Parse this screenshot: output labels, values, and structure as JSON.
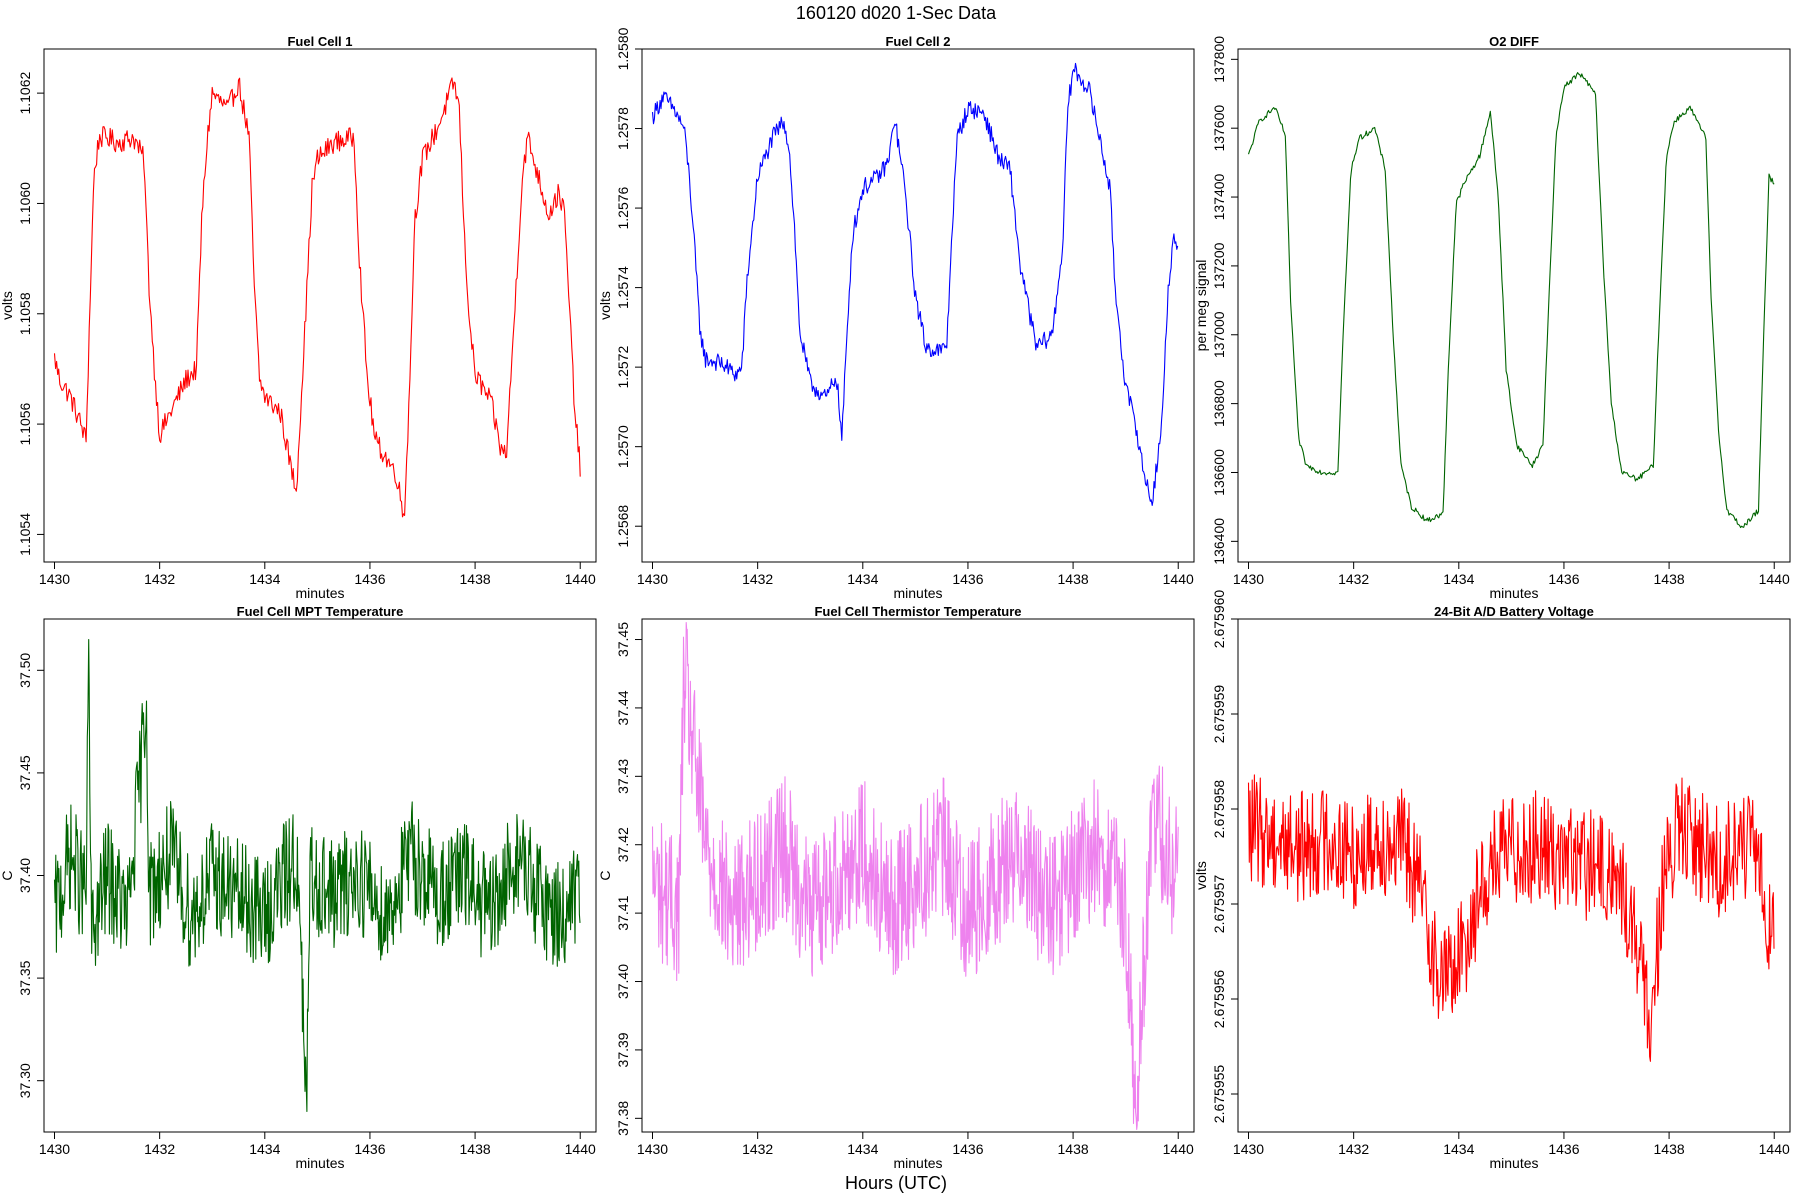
{
  "page": {
    "title": "160120   d020   1-Sec Data",
    "footer": "Hours (UTC)"
  },
  "chart_data": [
    {
      "type": "line",
      "title": "Fuel Cell 1",
      "xlabel": "minutes",
      "ylabel": "volts",
      "color": "#ff0000",
      "xlim": [
        1429.8,
        1440.3
      ],
      "ylim": [
        1.10535,
        1.10628
      ],
      "xticks": [
        1430,
        1432,
        1434,
        1436,
        1438,
        1440
      ],
      "xtick_labels": [
        "1430",
        "1432",
        "1434",
        "1436",
        "1438",
        "1440"
      ],
      "yticks": [
        1.1054,
        1.1056,
        1.1058,
        1.106,
        1.1062
      ],
      "ytick_labels": [
        "1.1054",
        "1.1056",
        "1.1058",
        "1.1060",
        "1.1062"
      ],
      "series": [
        {
          "x": [
            1430.0,
            1430.1,
            1430.3,
            1430.5,
            1430.6,
            1430.7,
            1430.75,
            1430.85,
            1431.0,
            1431.2,
            1431.5,
            1431.7,
            1431.8,
            1431.9,
            1432.0,
            1432.2,
            1432.5,
            1432.7,
            1432.8,
            1432.9,
            1433.0,
            1433.3,
            1433.5,
            1433.7,
            1433.8,
            1433.9,
            1434.0,
            1434.3,
            1434.5,
            1434.6,
            1434.75,
            1434.9,
            1435.0,
            1435.3,
            1435.7,
            1435.8,
            1435.95,
            1436.1,
            1436.3,
            1436.5,
            1436.65,
            1436.75,
            1436.85,
            1437.0,
            1437.3,
            1437.6,
            1437.7,
            1437.8,
            1437.9,
            1438.0,
            1438.3,
            1438.5,
            1438.6,
            1438.75,
            1438.9,
            1439.0,
            1439.2,
            1439.4,
            1439.6,
            1439.7,
            1439.8,
            1439.9,
            1440.0
          ],
          "y": [
            1.10572,
            1.10568,
            1.10565,
            1.1056,
            1.10557,
            1.1059,
            1.10605,
            1.10612,
            1.10612,
            1.10611,
            1.10612,
            1.10608,
            1.10585,
            1.1057,
            1.10558,
            1.10562,
            1.10568,
            1.1057,
            1.10597,
            1.10611,
            1.1062,
            1.10617,
            1.10622,
            1.10612,
            1.10585,
            1.10568,
            1.10565,
            1.10562,
            1.10552,
            1.10548,
            1.10575,
            1.10603,
            1.10608,
            1.10611,
            1.10612,
            1.1059,
            1.10568,
            1.10557,
            1.10554,
            1.10551,
            1.10543,
            1.10565,
            1.10597,
            1.10608,
            1.10614,
            1.10622,
            1.10617,
            1.10593,
            1.10578,
            1.10569,
            1.10564,
            1.10555,
            1.10555,
            1.1058,
            1.10605,
            1.10612,
            1.10605,
            1.10598,
            1.10602,
            1.10598,
            1.1058,
            1.10562,
            1.10552
          ]
        }
      ]
    },
    {
      "type": "line",
      "title": "Fuel Cell 2",
      "xlabel": "minutes",
      "ylabel": "volts",
      "color": "#0000ff",
      "xlim": [
        1429.8,
        1440.3
      ],
      "ylim": [
        1.25671,
        1.258
      ],
      "xticks": [
        1430,
        1432,
        1434,
        1436,
        1438,
        1440
      ],
      "xtick_labels": [
        "1430",
        "1432",
        "1434",
        "1436",
        "1438",
        "1440"
      ],
      "yticks": [
        1.2568,
        1.257,
        1.2572,
        1.2574,
        1.2576,
        1.2578,
        1.258
      ],
      "ytick_labels": [
        "1.2568",
        "1.2570",
        "1.2572",
        "1.2574",
        "1.2576",
        "1.2578",
        "1.2580"
      ],
      "series": [
        {
          "x": [
            1430.0,
            1430.2,
            1430.4,
            1430.6,
            1430.7,
            1430.8,
            1430.9,
            1431.0,
            1431.3,
            1431.6,
            1431.7,
            1431.8,
            1432.0,
            1432.3,
            1432.5,
            1432.6,
            1432.7,
            1432.8,
            1433.0,
            1433.3,
            1433.5,
            1433.6,
            1433.7,
            1433.8,
            1434.0,
            1434.3,
            1434.5,
            1434.6,
            1434.8,
            1435.0,
            1435.2,
            1435.5,
            1435.6,
            1435.7,
            1435.8,
            1436.0,
            1436.3,
            1436.6,
            1436.8,
            1437.0,
            1437.3,
            1437.6,
            1437.8,
            1437.9,
            1438.0,
            1438.3,
            1438.5,
            1438.7,
            1438.8,
            1439.0,
            1439.2,
            1439.35,
            1439.5,
            1439.6,
            1439.7,
            1439.8,
            1439.9,
            1440.0
          ],
          "y": [
            1.25783,
            1.25788,
            1.25785,
            1.2578,
            1.25768,
            1.2575,
            1.2573,
            1.25722,
            1.25721,
            1.25718,
            1.2572,
            1.25742,
            1.25768,
            1.25778,
            1.25782,
            1.25775,
            1.25755,
            1.25729,
            1.25716,
            1.25712,
            1.25718,
            1.25702,
            1.25728,
            1.25753,
            1.25765,
            1.25768,
            1.25772,
            1.25783,
            1.25765,
            1.25738,
            1.25725,
            1.25724,
            1.25726,
            1.25755,
            1.25778,
            1.25785,
            1.25784,
            1.25772,
            1.2577,
            1.25745,
            1.25725,
            1.25728,
            1.2575,
            1.25785,
            1.25795,
            1.2579,
            1.25778,
            1.25765,
            1.2574,
            1.25715,
            1.25705,
            1.25693,
            1.25686,
            1.25696,
            1.25708,
            1.25738,
            1.25752,
            1.25748
          ]
        }
      ]
    },
    {
      "type": "line",
      "title": "O2 DIFF",
      "xlabel": "minutes",
      "ylabel": "per meg signal",
      "color": "#006400",
      "xlim": [
        1429.8,
        1440.3
      ],
      "ylim": [
        136340,
        137830
      ],
      "xticks": [
        1430,
        1432,
        1434,
        1436,
        1438,
        1440
      ],
      "xtick_labels": [
        "1430",
        "1432",
        "1434",
        "1436",
        "1438",
        "1440"
      ],
      "yticks": [
        136400,
        136600,
        136800,
        137000,
        137200,
        137400,
        137600,
        137800
      ],
      "ytick_labels": [
        "136400",
        "136600",
        "136800",
        "137000",
        "137200",
        "137400",
        "137600",
        "137800"
      ],
      "series": [
        {
          "x": [
            1430.0,
            1430.2,
            1430.5,
            1430.7,
            1430.8,
            1430.95,
            1431.1,
            1431.4,
            1431.7,
            1431.8,
            1431.95,
            1432.1,
            1432.4,
            1432.6,
            1432.75,
            1432.9,
            1433.1,
            1433.4,
            1433.7,
            1433.8,
            1433.95,
            1434.1,
            1434.4,
            1434.6,
            1434.75,
            1434.9,
            1435.1,
            1435.4,
            1435.6,
            1435.7,
            1435.85,
            1436.0,
            1436.3,
            1436.6,
            1436.75,
            1436.9,
            1437.1,
            1437.4,
            1437.7,
            1437.8,
            1437.95,
            1438.1,
            1438.4,
            1438.7,
            1438.8,
            1438.95,
            1439.1,
            1439.4,
            1439.7,
            1439.8,
            1439.9,
            1440.0
          ],
          "y": [
            137520,
            137620,
            137660,
            137580,
            137100,
            136700,
            136620,
            136600,
            136600,
            137000,
            137480,
            137570,
            137600,
            137480,
            137000,
            136620,
            136500,
            136460,
            136480,
            136900,
            137380,
            137440,
            137520,
            137650,
            137400,
            136900,
            136680,
            136620,
            136680,
            137050,
            137580,
            137720,
            137760,
            137700,
            137200,
            136800,
            136600,
            136580,
            136620,
            137000,
            137520,
            137620,
            137660,
            137570,
            137100,
            136700,
            136490,
            136440,
            136490,
            137000,
            137460,
            137440
          ]
        }
      ]
    },
    {
      "type": "line",
      "title": "Fuel Cell MPT Temperature",
      "xlabel": "minutes",
      "ylabel": "C",
      "color": "#006400",
      "xlim": [
        1429.8,
        1440.3
      ],
      "ylim": [
        37.275,
        37.525
      ],
      "xticks": [
        1430,
        1432,
        1434,
        1436,
        1438,
        1440
      ],
      "xtick_labels": [
        "1430",
        "1432",
        "1434",
        "1436",
        "1438",
        "1440"
      ],
      "yticks": [
        37.3,
        37.35,
        37.4,
        37.45,
        37.5
      ],
      "ytick_labels": [
        "37.30",
        "37.35",
        "37.40",
        "37.45",
        "37.50"
      ],
      "series": [
        {
          "x": [
            1430.0,
            1430.3,
            1430.6,
            1430.65,
            1430.7,
            1431.0,
            1431.4,
            1431.75,
            1431.8,
            1432.2,
            1432.6,
            1433.0,
            1433.5,
            1434.0,
            1434.6,
            1434.8,
            1434.85,
            1434.9,
            1435.3,
            1435.8,
            1436.3,
            1436.8,
            1437.3,
            1437.8,
            1438.3,
            1438.8,
            1439.2,
            1439.6,
            1440.0
          ],
          "y": [
            37.38,
            37.41,
            37.39,
            37.515,
            37.37,
            37.4,
            37.38,
            37.485,
            37.39,
            37.41,
            37.38,
            37.4,
            37.39,
            37.38,
            37.41,
            37.285,
            37.39,
            37.4,
            37.39,
            37.4,
            37.38,
            37.41,
            37.39,
            37.4,
            37.38,
            37.41,
            37.39,
            37.38,
            37.39
          ]
        }
      ]
    },
    {
      "type": "line",
      "title": "Fuel Cell Thermistor Temperature",
      "xlabel": "minutes",
      "ylabel": "C",
      "color": "#ee82ee",
      "xlim": [
        1429.8,
        1440.3
      ],
      "ylim": [
        37.378,
        37.453
      ],
      "xticks": [
        1430,
        1432,
        1434,
        1436,
        1438,
        1440
      ],
      "xtick_labels": [
        "1430",
        "1432",
        "1434",
        "1436",
        "1438",
        "1440"
      ],
      "yticks": [
        37.38,
        37.39,
        37.4,
        37.41,
        37.42,
        37.43,
        37.44,
        37.45
      ],
      "ytick_labels": [
        "37.38",
        "37.39",
        "37.40",
        "37.41",
        "37.42",
        "37.43",
        "37.44",
        "37.45"
      ],
      "series": [
        {
          "x": [
            1430.0,
            1430.5,
            1430.6,
            1431.0,
            1431.5,
            1432.0,
            1432.5,
            1433.0,
            1433.5,
            1434.0,
            1434.5,
            1435.0,
            1435.5,
            1436.0,
            1436.5,
            1437.0,
            1437.5,
            1438.0,
            1438.5,
            1439.0,
            1439.2,
            1439.5,
            1440.0
          ],
          "y": [
            37.415,
            37.41,
            37.445,
            37.42,
            37.41,
            37.415,
            37.42,
            37.41,
            37.415,
            37.42,
            37.41,
            37.415,
            37.42,
            37.41,
            37.415,
            37.42,
            37.41,
            37.415,
            37.42,
            37.41,
            37.38,
            37.425,
            37.415
          ]
        }
      ]
    },
    {
      "type": "line",
      "title": "24-Bit A/D Battery Voltage",
      "xlabel": "minutes",
      "ylabel": "volts",
      "color": "#ff0000",
      "xlim": [
        1429.8,
        1440.3
      ],
      "ylim": [
        2.6759546,
        2.67596
      ],
      "xticks": [
        1430,
        1432,
        1434,
        1436,
        1438,
        1440
      ],
      "xtick_labels": [
        "1430",
        "1432",
        "1434",
        "1436",
        "1438",
        "1440"
      ],
      "yticks": [
        2.675955,
        2.675956,
        2.675957,
        2.675958,
        2.675959,
        2.67596
      ],
      "ytick_labels": [
        "2.675955",
        "2.675956",
        "2.675957",
        "2.675958",
        "2.675959",
        "2.675960"
      ],
      "series": [
        {
          "x": [
            1430.0,
            1430.5,
            1431.0,
            1431.5,
            1432.0,
            1432.5,
            1433.0,
            1433.4,
            1433.6,
            1434.0,
            1434.5,
            1435.0,
            1435.5,
            1436.0,
            1436.5,
            1437.0,
            1437.4,
            1437.6,
            1437.9,
            1438.2,
            1438.6,
            1439.0,
            1439.4,
            1439.7,
            1440.0
          ],
          "y": [
            2.6759578,
            2.6759577,
            2.6759576,
            2.6759577,
            2.6759575,
            2.6759577,
            2.6759576,
            2.6759569,
            2.6759562,
            2.6759564,
            2.6759573,
            2.6759576,
            2.6759576,
            2.6759575,
            2.6759574,
            2.6759573,
            2.6759566,
            2.6759557,
            2.6759572,
            2.6759578,
            2.6759576,
            2.6759574,
            2.6759577,
            2.6759574,
            2.6759566
          ]
        }
      ]
    }
  ]
}
